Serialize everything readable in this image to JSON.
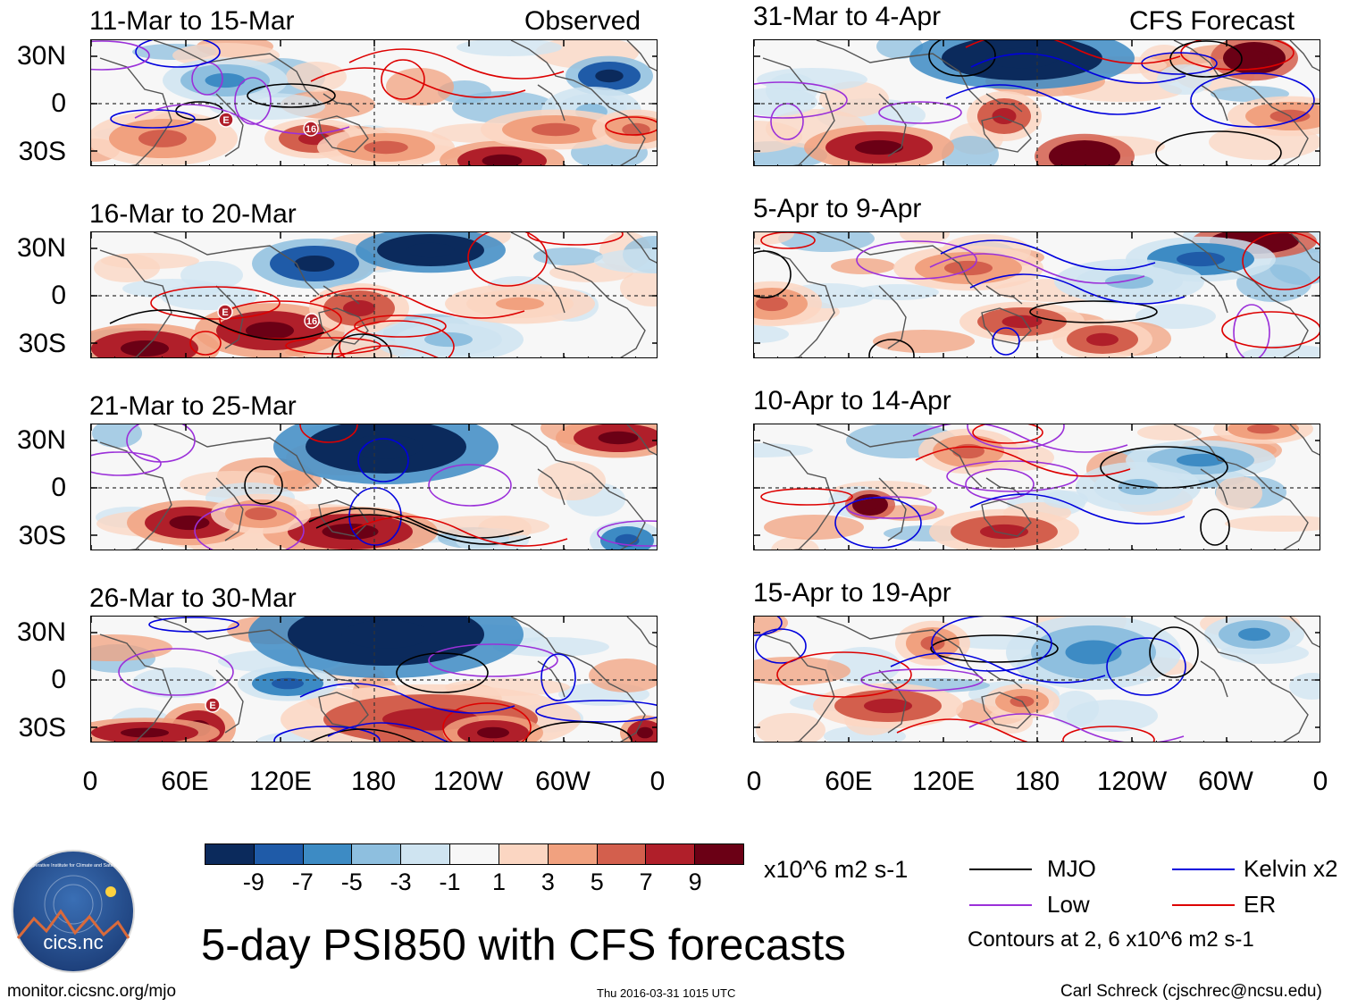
{
  "header": {
    "left_label": "Observed",
    "right_label": "CFS Forecast"
  },
  "panels_left": [
    {
      "title": "11-Mar to 15-Mar"
    },
    {
      "title": "16-Mar to 20-Mar"
    },
    {
      "title": "21-Mar to 25-Mar"
    },
    {
      "title": "26-Mar to 30-Mar"
    }
  ],
  "panels_right": [
    {
      "title": "31-Mar to 4-Apr"
    },
    {
      "title": "5-Apr to 9-Apr"
    },
    {
      "title": "10-Apr to 14-Apr"
    },
    {
      "title": "15-Apr to 19-Apr"
    }
  ],
  "y_ticks": [
    "30N",
    "0",
    "30S"
  ],
  "x_ticks": [
    "0",
    "60E",
    "120E",
    "180",
    "120W",
    "60W",
    "0"
  ],
  "storm_labels": [
    "E",
    "16",
    "E",
    "16",
    "E"
  ],
  "colorbar": {
    "colors": [
      "#0b2a5c",
      "#1f5ba8",
      "#3d8bc4",
      "#8ebfdf",
      "#cfe4f1",
      "#f7f7f7",
      "#fbd6c2",
      "#f1a17f",
      "#d35f4d",
      "#b01f2a",
      "#6b0015"
    ],
    "labels": [
      "-9",
      "-7",
      "-5",
      "-3",
      "-1",
      "1",
      "3",
      "5",
      "7",
      "9"
    ],
    "units": "x10^6 m2 s-1"
  },
  "legend": {
    "items": [
      {
        "label": "MJO",
        "color": "#000000"
      },
      {
        "label": "Kelvin x2",
        "color": "#0000dd"
      },
      {
        "label": "Low",
        "color": "#9b30d9"
      },
      {
        "label": "ER",
        "color": "#dd0000"
      }
    ],
    "note": "Contours at 2, 6 x10^6 m2 s-1"
  },
  "title": "5-day PSI850 with CFS forecasts",
  "logo_text": "cics.nc",
  "logo_ring": "Cooperative Institute for Climate and Satellites",
  "footer": {
    "left": "monitor.cicsnc.org/mjo",
    "center": "Thu 2016-03-31 1015 UTC",
    "right": "Carl Schreck (cjschrec@ncsu.edu)"
  }
}
